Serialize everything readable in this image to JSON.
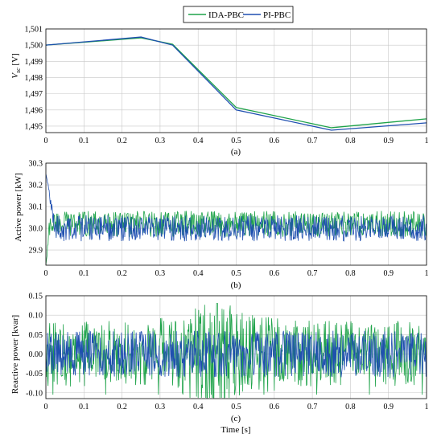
{
  "legend": [
    {
      "name": "IDA-PBC",
      "color": "#1fa34a"
    },
    {
      "name": "PI-PBC",
      "color": "#1f4fb0"
    }
  ],
  "x_label": "Time [s]",
  "chart_data": [
    {
      "type": "line",
      "caption": "(a)",
      "ylabel": "Vsc [V]",
      "ylabel_main": "V",
      "ylabel_sub": "sc",
      "ylabel_unit": " [V]",
      "xlim": [
        0,
        1
      ],
      "ylim": [
        1494.6,
        1501
      ],
      "x_ticks": [
        "0",
        "0.1",
        "0.2",
        "0.3",
        "0.4",
        "0.5",
        "0.6",
        "0.7",
        "0.8",
        "0.9",
        "1"
      ],
      "y_ticks": [
        "1,495",
        "1,496",
        "1,497",
        "1,498",
        "1,499",
        "1,500",
        "1,501"
      ],
      "y_tick_values": [
        1495,
        1496,
        1497,
        1498,
        1499,
        1500,
        1501
      ],
      "grid": true,
      "series": [
        {
          "name": "IDA-PBC",
          "x": [
            0,
            0.25,
            0.333,
            0.5,
            0.75,
            1
          ],
          "y": [
            1500.0,
            1500.45,
            1500.05,
            1496.15,
            1494.9,
            1495.45
          ]
        },
        {
          "name": "PI-PBC",
          "x": [
            0,
            0.25,
            0.333,
            0.5,
            0.75,
            1
          ],
          "y": [
            1500.0,
            1500.5,
            1500.0,
            1496.0,
            1494.75,
            1495.2
          ]
        }
      ]
    },
    {
      "type": "line",
      "caption": "(b)",
      "ylabel": "Active power [kW]",
      "xlim": [
        0,
        1
      ],
      "ylim": [
        29.83,
        30.3
      ],
      "x_ticks": [
        "0",
        "0.1",
        "0.2",
        "0.3",
        "0.4",
        "0.5",
        "0.6",
        "0.7",
        "0.8",
        "0.9",
        "1"
      ],
      "y_ticks": [
        "29.9",
        "30.0",
        "30.1",
        "30.2",
        "30.3"
      ],
      "y_tick_values": [
        29.9,
        30.0,
        30.1,
        30.2,
        30.3
      ],
      "grid": true,
      "series": [
        {
          "name": "IDA-PBC",
          "mean": 30.02,
          "noise_amplitude": 0.06,
          "transient": {
            "start": 29.82,
            "x_end": 0.01
          }
        },
        {
          "name": "PI-PBC",
          "mean": 30.0,
          "noise_amplitude": 0.06,
          "transient": {
            "start": 30.25,
            "x_end": 0.025
          }
        }
      ]
    },
    {
      "type": "line",
      "caption": "(c)",
      "ylabel": "Reactive power [kvar]",
      "xlim": [
        0,
        1
      ],
      "ylim": [
        -0.115,
        0.15
      ],
      "x_ticks": [
        "0",
        "0.1",
        "0.2",
        "0.3",
        "0.4",
        "0.5",
        "0.6",
        "0.7",
        "0.8",
        "0.9",
        "1"
      ],
      "y_ticks": [
        "-0.10",
        "-0.05",
        "0.00",
        "0.05",
        "0.10",
        "0.15"
      ],
      "y_tick_values": [
        -0.1,
        -0.05,
        0.0,
        0.05,
        0.1,
        0.15
      ],
      "grid": true,
      "series": [
        {
          "name": "IDA-PBC",
          "mean": 0.0,
          "noise_amplitude": 0.1,
          "peak": {
            "x": 0.45,
            "y": 0.13
          },
          "trough": {
            "y": -0.105
          }
        },
        {
          "name": "PI-PBC",
          "mean": 0.0,
          "noise_amplitude": 0.06
        }
      ]
    }
  ]
}
